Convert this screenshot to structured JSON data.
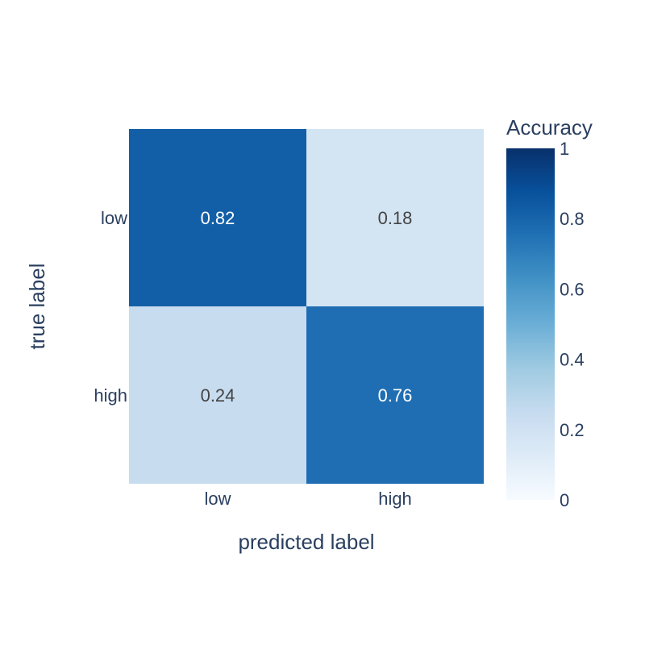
{
  "chart_data": {
    "type": "heatmap",
    "title": "",
    "xlabel": "predicted label",
    "ylabel": "true label",
    "x_categories": [
      "low",
      "high"
    ],
    "y_categories": [
      "low",
      "high"
    ],
    "z": [
      [
        0.82,
        0.18
      ],
      [
        0.24,
        0.76
      ]
    ],
    "cell_labels": [
      [
        "0.82",
        "0.18"
      ],
      [
        "0.24",
        "0.76"
      ]
    ],
    "colorscale": "Blues",
    "colorbar": {
      "title": "Accuracy",
      "range": [
        0,
        1
      ],
      "ticks": [
        0,
        0.2,
        0.4,
        0.6,
        0.8,
        1
      ],
      "tick_labels": [
        "0",
        "0.2",
        "0.4",
        "0.6",
        "0.8",
        "1"
      ]
    },
    "colors": {
      "text_dark": "#444444",
      "text_light": "#ffffff",
      "axis_text": "#2a3f5f",
      "scale": [
        "#f7fbff",
        "#deebf7",
        "#c6dbef",
        "#9ecae1",
        "#6baed6",
        "#4292c6",
        "#2171b5",
        "#08519c",
        "#08306b"
      ]
    }
  }
}
